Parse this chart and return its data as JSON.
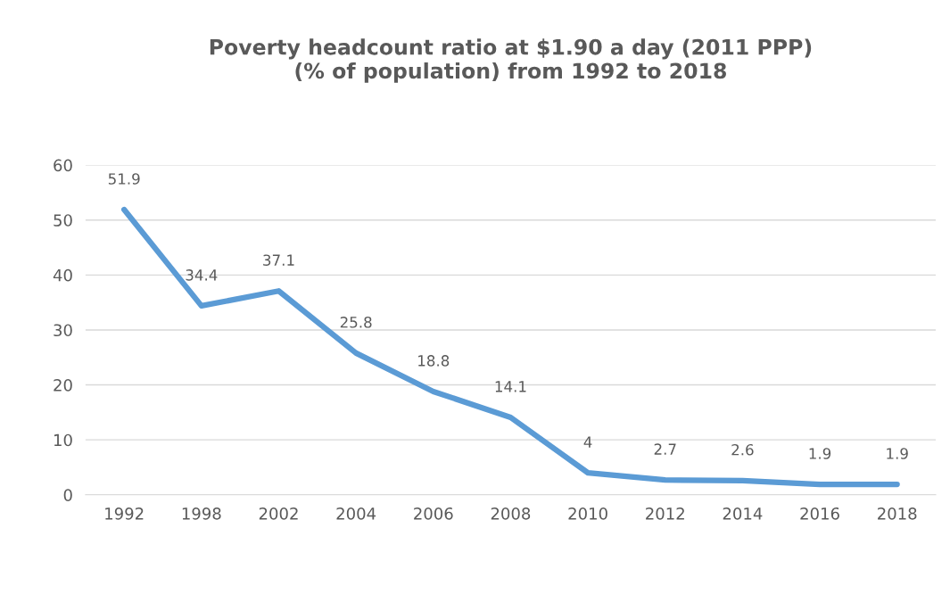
{
  "chart_data": {
    "type": "line",
    "title": "Poverty headcount ratio at $1.90 a day (2011 PPP)\n(% of population) from 1992 to 2018",
    "categories": [
      "1992",
      "1998",
      "2002",
      "2004",
      "2006",
      "2008",
      "2010",
      "2012",
      "2014",
      "2016",
      "2018"
    ],
    "series": [
      {
        "color": "#5b9bd5",
        "values": [
          51.9,
          34.4,
          37.1,
          25.8,
          18.8,
          14.1,
          4,
          2.7,
          2.6,
          1.9,
          1.9
        ]
      }
    ],
    "ylim": [
      0,
      60
    ],
    "yticks": [
      0,
      10,
      20,
      30,
      40,
      50,
      60
    ],
    "grid": "y",
    "data_labels": true,
    "marker": "none",
    "line_style": "solid",
    "legend": false
  }
}
